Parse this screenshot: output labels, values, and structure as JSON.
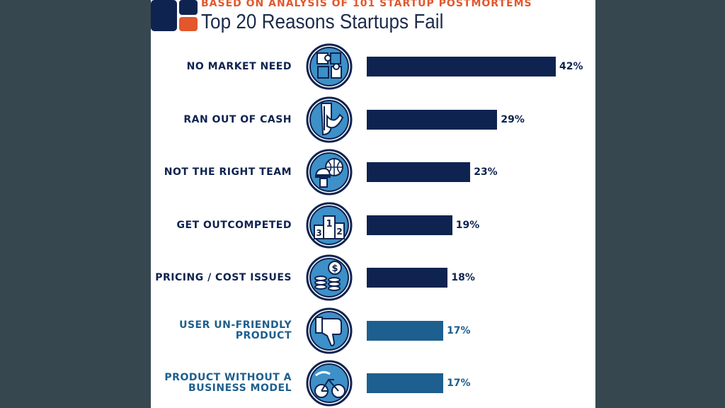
{
  "header": {
    "subtitle": "BASED ON ANALYSIS OF 101 STARTUP POSTMORTEMS",
    "title": "Top 20 Reasons Startups Fail"
  },
  "colors": {
    "background": "#36474f",
    "panel": "#ffffff",
    "accent": "#e2572c",
    "navy": "#0e2350",
    "blue": "#1d5f8e",
    "icon_fill": "#3d90c8"
  },
  "chart_data": {
    "type": "bar",
    "orientation": "horizontal",
    "title": "Top 20 Reasons Startups Fail",
    "subtitle": "BASED ON ANALYSIS OF 101 STARTUP POSTMORTEMS",
    "xlim": [
      0,
      42
    ],
    "grid": false,
    "categories": [
      "NO MARKET NEED",
      "RAN OUT OF CASH",
      "NOT THE RIGHT TEAM",
      "GET OUTCOMPETED",
      "PRICING / COST ISSUES",
      "USER UN-FRIENDLY\nPRODUCT",
      "PRODUCT WITHOUT A\nBUSINESS MODEL"
    ],
    "values": [
      42,
      29,
      23,
      19,
      18,
      17,
      17
    ],
    "value_labels": [
      "42%",
      "29%",
      "23%",
      "19%",
      "18%",
      "17%",
      "17%"
    ],
    "bar_colors": [
      "#0e2350",
      "#0e2350",
      "#0e2350",
      "#0e2350",
      "#0e2350",
      "#1d5f8e",
      "#1d5f8e"
    ],
    "icons": [
      "puzzle-icon",
      "empty-pocket-icon",
      "team-players-icon",
      "podium-icon",
      "coins-icon",
      "thumbs-down-icon",
      "bicycle-icon"
    ],
    "icon_digits": [
      "1",
      "2",
      "3"
    ]
  }
}
